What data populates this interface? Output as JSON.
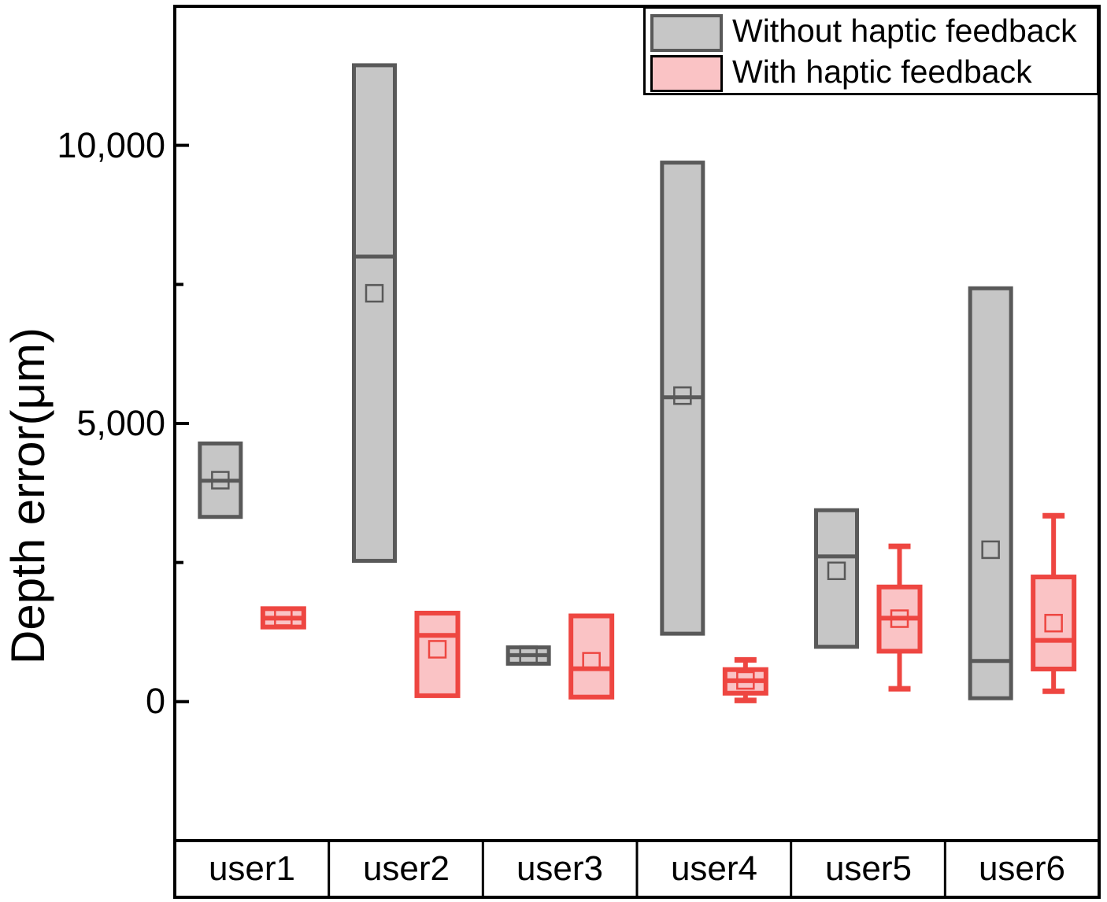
{
  "chart_data": {
    "type": "boxplot",
    "title": "",
    "ylabel": "Depth error(μm)",
    "xlabel": "",
    "categories": [
      "user1",
      "user2",
      "user3",
      "user4",
      "user5",
      "user6"
    ],
    "ylim": [
      -2500,
      12500
    ],
    "yticks_major": [
      0,
      5000,
      10000
    ],
    "ytick_labels": [
      "0",
      "5,000",
      "10,000"
    ],
    "yticks_minor": [
      2500,
      7500
    ],
    "grid": false,
    "legend_position": "top-right",
    "legend": [
      {
        "label": "Without haptic feedback",
        "fill": "#c6c6c6",
        "border": "#595959"
      },
      {
        "label": "With haptic feedback",
        "fill": "#fac3c5",
        "border": "#000000"
      }
    ],
    "series": [
      {
        "name": "Without haptic feedback",
        "fill": "#c6c6c6",
        "border": "#595959",
        "boxes": [
          {
            "category": "user1",
            "q1": 3320,
            "median": 3970,
            "q3": 4640,
            "mean": 3980,
            "whisker_low": null,
            "whisker_high": null
          },
          {
            "category": "user2",
            "q1": 2530,
            "median": 8000,
            "q3": 11440,
            "mean": 7340,
            "whisker_low": null,
            "whisker_high": null
          },
          {
            "category": "user3",
            "q1": 680,
            "median": 835,
            "q3": 975,
            "mean": 845,
            "whisker_low": null,
            "whisker_high": null
          },
          {
            "category": "user4",
            "q1": 1220,
            "median": 5470,
            "q3": 9690,
            "mean": 5500,
            "whisker_low": null,
            "whisker_high": null
          },
          {
            "category": "user5",
            "q1": 985,
            "median": 2610,
            "q3": 3440,
            "mean": 2350,
            "whisker_low": null,
            "whisker_high": null
          },
          {
            "category": "user6",
            "q1": 60,
            "median": 730,
            "q3": 7430,
            "mean": 2730,
            "whisker_low": null,
            "whisker_high": null
          }
        ]
      },
      {
        "name": "With haptic feedback",
        "fill": "#fac3c5",
        "border": "#ee4641",
        "boxes": [
          {
            "category": "user1",
            "q1": 1340,
            "median": 1500,
            "q3": 1670,
            "mean": 1520,
            "whisker_low": null,
            "whisker_high": null
          },
          {
            "category": "user2",
            "q1": 105,
            "median": 1190,
            "q3": 1590,
            "mean": 940,
            "whisker_low": null,
            "whisker_high": null
          },
          {
            "category": "user3",
            "q1": 80,
            "median": 590,
            "q3": 1540,
            "mean": 725,
            "whisker_low": null,
            "whisker_high": null
          },
          {
            "category": "user4",
            "q1": 150,
            "median": 375,
            "q3": 575,
            "mean": 380,
            "whisker_low": 20,
            "whisker_high": 750
          },
          {
            "category": "user5",
            "q1": 905,
            "median": 1500,
            "q3": 2060,
            "mean": 1490,
            "whisker_low": 230,
            "whisker_high": 2790
          },
          {
            "category": "user6",
            "q1": 585,
            "median": 1100,
            "q3": 2240,
            "mean": 1410,
            "whisker_low": 185,
            "whisker_high": 3340
          }
        ]
      }
    ]
  }
}
